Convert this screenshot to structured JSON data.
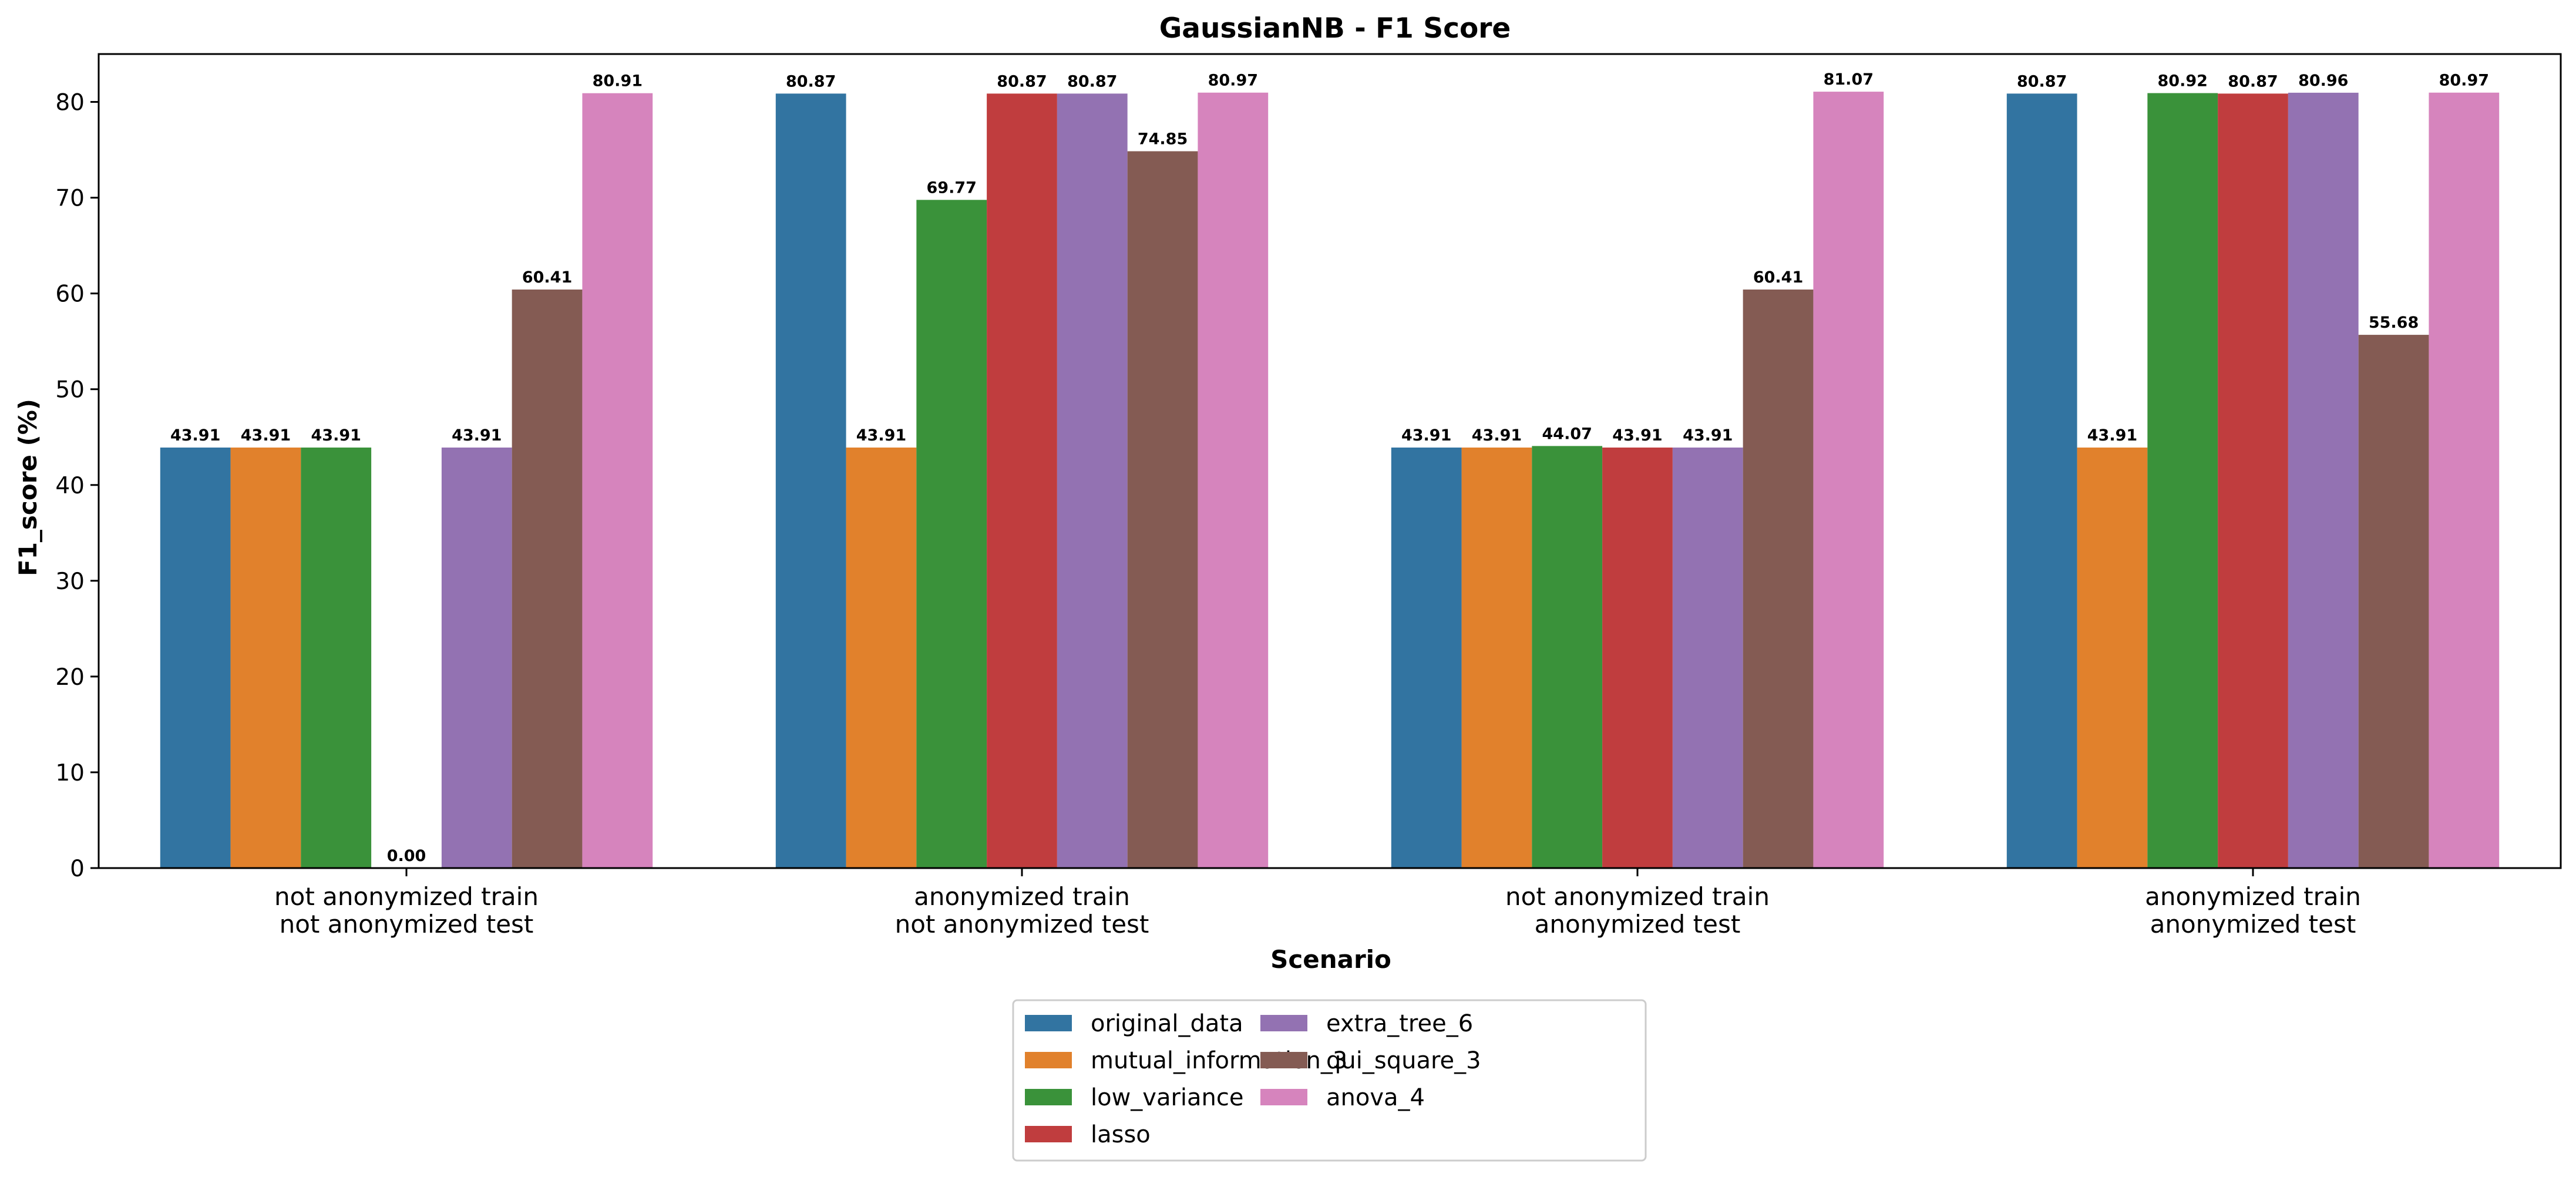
{
  "chart_data": {
    "type": "bar",
    "title": "GaussianNB - F1 Score",
    "xlabel": "Scenario",
    "ylabel": "F1_score (%)",
    "ylim": [
      0,
      85
    ],
    "yticks": [
      0,
      10,
      20,
      30,
      40,
      50,
      60,
      70,
      80
    ],
    "grid": false,
    "legend_position": "bottom-center",
    "legend_columns": 2,
    "categories": [
      [
        "not anonymized train",
        "not anonymized test"
      ],
      [
        "anonymized train",
        "not anonymized test"
      ],
      [
        "not anonymized train",
        "anonymized test"
      ],
      [
        "anonymized train",
        "anonymized test"
      ]
    ],
    "series": [
      {
        "name": "original_data",
        "color": "#3274a1",
        "values": [
          43.91,
          80.87,
          43.91,
          80.87
        ]
      },
      {
        "name": "mutual_information_3",
        "color": "#e1812c",
        "values": [
          43.91,
          43.91,
          43.91,
          43.91
        ]
      },
      {
        "name": "low_variance",
        "color": "#3a923a",
        "values": [
          43.91,
          69.77,
          44.07,
          80.92
        ]
      },
      {
        "name": "lasso",
        "color": "#c03d3e",
        "values": [
          0.0,
          80.87,
          43.91,
          80.87
        ]
      },
      {
        "name": "extra_tree_6",
        "color": "#9372b2",
        "values": [
          43.91,
          80.87,
          43.91,
          80.96
        ]
      },
      {
        "name": "qui_square_3",
        "color": "#845b53",
        "values": [
          60.41,
          74.85,
          60.41,
          55.68
        ]
      },
      {
        "name": "anova_4",
        "color": "#d684bd",
        "values": [
          80.91,
          80.97,
          81.07,
          80.97
        ]
      }
    ]
  }
}
